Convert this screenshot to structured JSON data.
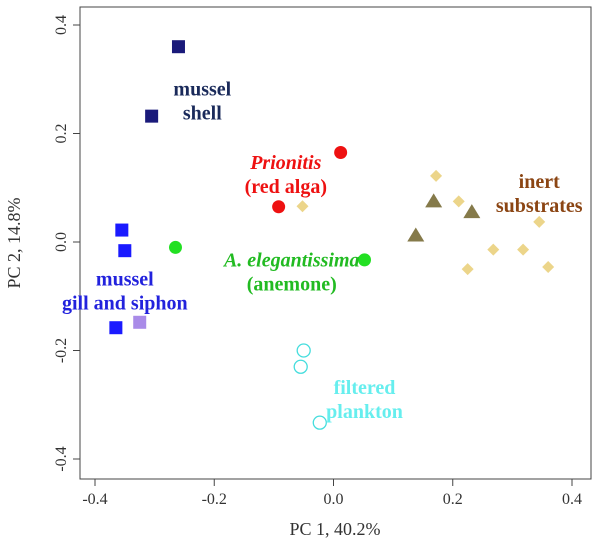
{
  "chart_data": {
    "type": "scatter",
    "title": "",
    "xlabel": "PC 1, 40.2%",
    "ylabel": "PC 2, 14.8%",
    "xlim": [
      -0.43,
      0.43
    ],
    "ylim": [
      -0.43,
      0.41
    ],
    "xticks": [
      -0.4,
      -0.2,
      0.0,
      0.2,
      0.4
    ],
    "yticks": [
      -0.4,
      -0.2,
      0.0,
      0.2,
      0.4
    ],
    "xtick_labels": [
      "-0.4",
      "-0.2",
      "0.0",
      "0.2",
      "0.4"
    ],
    "ytick_labels": [
      "-0.4",
      "-0.2",
      "0.0",
      "0.2",
      "0.4"
    ],
    "grid": false,
    "series": [
      {
        "key": "mussel-shell",
        "marker": "square",
        "color": "#1a1a7a",
        "points": [
          [
            -0.26,
            0.36
          ],
          [
            -0.305,
            0.232
          ]
        ]
      },
      {
        "key": "mussel-gill",
        "marker": "square",
        "color": "#1a1aff",
        "points": [
          [
            -0.355,
            0.022
          ],
          [
            -0.35,
            -0.016
          ],
          [
            -0.365,
            -0.158
          ]
        ]
      },
      {
        "key": "mussel-gill-light",
        "marker": "square",
        "color": "#a98be8",
        "points": [
          [
            -0.325,
            -0.148
          ]
        ]
      },
      {
        "key": "red-alga",
        "marker": "circle-filled",
        "color": "#ee1111",
        "points": [
          [
            0.012,
            0.165
          ],
          [
            -0.092,
            0.065
          ]
        ]
      },
      {
        "key": "anemone",
        "marker": "circle-filled",
        "color": "#22e022",
        "points": [
          [
            -0.265,
            -0.01
          ],
          [
            0.052,
            -0.033
          ]
        ]
      },
      {
        "key": "plankton",
        "marker": "circle-open",
        "color": "#44dddd",
        "points": [
          [
            -0.05,
            -0.2
          ],
          [
            -0.055,
            -0.23
          ],
          [
            -0.023,
            -0.333
          ]
        ]
      },
      {
        "key": "inert-triangles",
        "marker": "triangle",
        "color": "#857a4a",
        "points": [
          [
            0.168,
            0.075
          ],
          [
            0.232,
            0.055
          ],
          [
            0.138,
            0.012
          ]
        ]
      },
      {
        "key": "inert-diamonds",
        "marker": "diamond",
        "color": "#ecd58a",
        "points": [
          [
            -0.052,
            0.066
          ],
          [
            0.172,
            0.122
          ],
          [
            0.21,
            0.075
          ],
          [
            0.345,
            0.037
          ],
          [
            0.268,
            -0.014
          ],
          [
            0.318,
            -0.014
          ],
          [
            0.225,
            -0.05
          ],
          [
            0.36,
            -0.046
          ]
        ]
      }
    ],
    "annotations": [
      {
        "key": "shell",
        "lines": [
          "mussel",
          "shell"
        ],
        "x": -0.22,
        "y": 0.27,
        "color": "#1a2a5a",
        "italic_first_line": false
      },
      {
        "key": "gill",
        "lines": [
          "mussel",
          "gill and siphon"
        ],
        "x": -0.35,
        "y": -0.08,
        "color": "#2222dd",
        "italic_first_line": false
      },
      {
        "key": "alga",
        "lines": [
          "Prionitis",
          "(red alga)"
        ],
        "x": -0.08,
        "y": 0.135,
        "color": "#ee1111",
        "italic_first_line": true
      },
      {
        "key": "anemone",
        "lines": [
          "A. elegantissima",
          "(anemone)"
        ],
        "x": -0.07,
        "y": -0.045,
        "color": "#22bb22",
        "italic_first_line": true,
        "split_first": [
          "A. elegantissima",
          ""
        ]
      },
      {
        "key": "plankton",
        "lines": [
          "filtered",
          "plankton"
        ],
        "x": 0.052,
        "y": -0.28,
        "color": "#66eeee",
        "italic_first_line": false
      },
      {
        "key": "inert",
        "lines": [
          "inert",
          "substrates"
        ],
        "x": 0.345,
        "y": 0.1,
        "color": "#8b4513",
        "italic_first_line": false
      }
    ]
  }
}
